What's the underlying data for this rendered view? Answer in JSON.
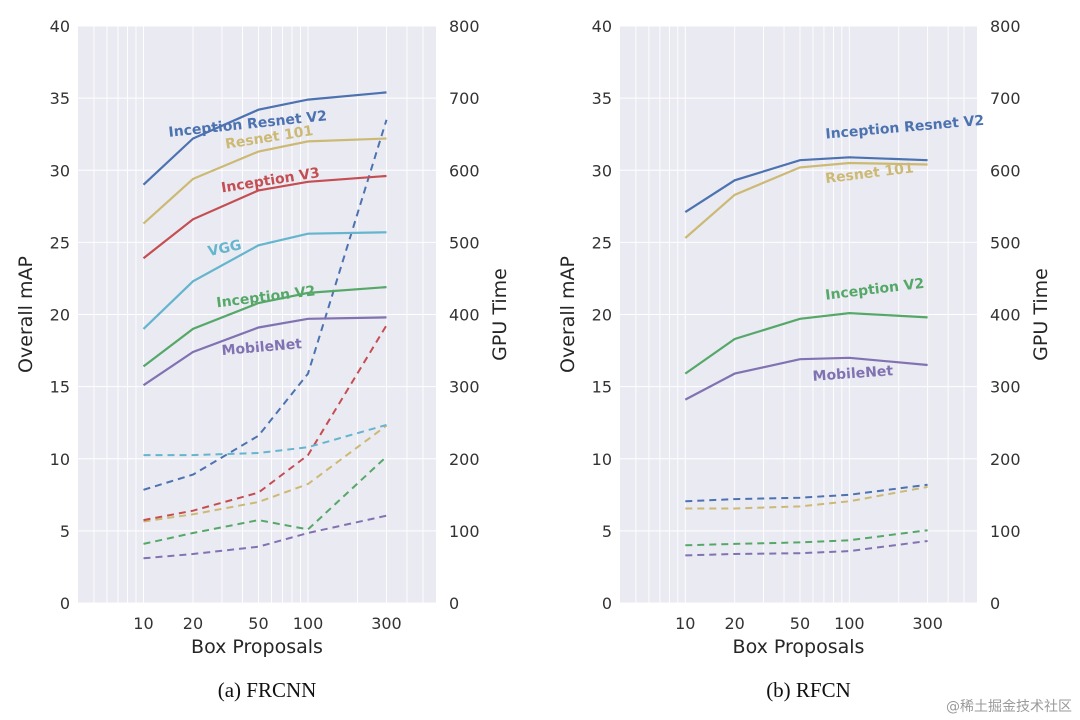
{
  "chart_data": [
    {
      "type": "line",
      "panel": "FRCNN",
      "caption": "(a) FRCNN",
      "xlabel": "Box Proposals",
      "ylabel": "Overall mAP",
      "y2label": "GPU Time",
      "x": [
        10,
        20,
        50,
        100,
        300
      ],
      "x_scale": "log",
      "xlim": [
        4,
        600
      ],
      "ylim": [
        0,
        40
      ],
      "y2lim": [
        0,
        800
      ],
      "yticks": [
        0,
        5,
        10,
        15,
        20,
        25,
        30,
        35,
        40
      ],
      "y2ticks": [
        0,
        100,
        200,
        300,
        400,
        500,
        600,
        700,
        800
      ],
      "grid": true,
      "series": [
        {
          "name": "Inception Resnet V2",
          "color": "#4c72b0",
          "map": [
            29.0,
            32.2,
            34.2,
            34.9,
            35.4
          ],
          "gpu_time": [
            157,
            178,
            232,
            318,
            670
          ]
        },
        {
          "name": "Resnet 101",
          "color": "#ccb974",
          "map": [
            26.3,
            29.4,
            31.3,
            32.0,
            32.2
          ],
          "gpu_time": [
            113,
            123,
            140,
            165,
            246
          ]
        },
        {
          "name": "Inception V3",
          "color": "#c44e52",
          "map": [
            23.9,
            26.6,
            28.6,
            29.2,
            29.6
          ],
          "gpu_time": [
            115,
            128,
            153,
            205,
            385
          ]
        },
        {
          "name": "VGG",
          "color": "#64b5cd",
          "map": [
            19.0,
            22.3,
            24.8,
            25.6,
            25.7
          ],
          "gpu_time": [
            205,
            205,
            208,
            216,
            247
          ]
        },
        {
          "name": "Inception V2",
          "color": "#55a868",
          "map": [
            16.4,
            19.0,
            20.8,
            21.5,
            21.9
          ],
          "gpu_time": [
            82,
            97,
            115,
            102,
            203
          ]
        },
        {
          "name": "MobileNet",
          "color": "#8172b2",
          "map": [
            15.1,
            17.4,
            19.1,
            19.7,
            19.8
          ],
          "gpu_time": [
            62,
            68,
            78,
            97,
            121
          ]
        }
      ]
    },
    {
      "type": "line",
      "panel": "RFCN",
      "caption": "(b) RFCN",
      "xlabel": "Box Proposals",
      "ylabel": "Overall mAP",
      "y2label": "GPU Time",
      "x": [
        10,
        20,
        50,
        100,
        300
      ],
      "x_scale": "log",
      "xlim": [
        4,
        600
      ],
      "ylim": [
        0,
        40
      ],
      "y2lim": [
        0,
        800
      ],
      "yticks": [
        0,
        5,
        10,
        15,
        20,
        25,
        30,
        35,
        40
      ],
      "y2ticks": [
        0,
        100,
        200,
        300,
        400,
        500,
        600,
        700,
        800
      ],
      "grid": true,
      "series": [
        {
          "name": "Inception Resnet V2",
          "color": "#4c72b0",
          "map": [
            27.1,
            29.3,
            30.7,
            30.9,
            30.7
          ],
          "gpu_time": [
            141,
            144,
            146,
            150,
            164
          ]
        },
        {
          "name": "Resnet 101",
          "color": "#ccb974",
          "map": [
            25.3,
            28.3,
            30.2,
            30.5,
            30.4
          ],
          "gpu_time": [
            131,
            131,
            134,
            141,
            161
          ]
        },
        {
          "name": "Inception V2",
          "color": "#55a868",
          "map": [
            15.9,
            18.3,
            19.7,
            20.1,
            19.8
          ],
          "gpu_time": [
            80,
            82,
            84,
            87,
            101
          ]
        },
        {
          "name": "MobileNet",
          "color": "#8172b2",
          "map": [
            14.1,
            15.9,
            16.9,
            17.0,
            16.5
          ],
          "gpu_time": [
            66,
            68,
            69,
            72,
            86
          ]
        }
      ]
    }
  ],
  "watermark": "@稀土掘金技术社区"
}
